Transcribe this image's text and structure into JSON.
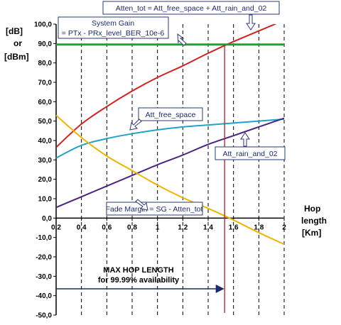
{
  "chart_data": {
    "type": "line",
    "xlabel": [
      "Hop",
      "length",
      "[Km]"
    ],
    "ylabel": [
      "[dB]",
      "or",
      "[dBm]"
    ],
    "xlim": [
      0.2,
      2.0
    ],
    "ylim": [
      -50,
      100
    ],
    "x_ticks": [
      "0,2",
      "0,4",
      "0,6",
      "0,8",
      "1",
      "1,2",
      "1,4",
      "1,6",
      "1,8",
      "2"
    ],
    "x_tick_values": [
      0.2,
      0.4,
      0.6,
      0.8,
      1.0,
      1.2,
      1.4,
      1.6,
      1.8,
      2.0
    ],
    "y_ticks": [
      "-50,0",
      "-40,0",
      "-30,0",
      "-20,0",
      "-10,0",
      "0,0",
      "10,0",
      "20,0",
      "30,0",
      "40,0",
      "50,0",
      "60,0",
      "70,0",
      "80,0",
      "90,0",
      "100,0"
    ],
    "y_tick_values": [
      -50,
      -40,
      -30,
      -20,
      -10,
      0,
      10,
      20,
      30,
      40,
      50,
      60,
      70,
      80,
      90,
      100
    ],
    "grid": {
      "vertical": "dashed",
      "horizontal": "none"
    },
    "x": [
      0.2,
      0.4,
      0.6,
      0.8,
      1.0,
      1.2,
      1.4,
      1.6,
      1.8,
      2.0
    ],
    "series": [
      {
        "name": "Atten_tot = Att_free_space + Att_rain_and_02",
        "color": "#d42020",
        "values": [
          36.5,
          48.5,
          57.5,
          65.5,
          72.5,
          78.5,
          85.0,
          91.0,
          96.5,
          102.0
        ]
      },
      {
        "name": "Att_free_space",
        "color": "#1fa3c9",
        "values": [
          31.0,
          37.5,
          41.0,
          43.5,
          45.5,
          47.0,
          48.0,
          49.0,
          50.0,
          51.0
        ]
      },
      {
        "name": "Att_rain_and_02",
        "color": "#4a2484",
        "values": [
          5.5,
          11.0,
          16.5,
          22.0,
          27.5,
          32.5,
          38.0,
          42.5,
          47.0,
          51.5
        ]
      },
      {
        "name": "Fade Margin = SG - Atten_tot",
        "color": "#f0b400",
        "values": [
          53.0,
          41.5,
          32.0,
          24.5,
          17.0,
          10.5,
          5.0,
          -1.0,
          -7.5,
          -13.5
        ]
      },
      {
        "name": "System Gain = PTx - PRx_level_BER_10e-6",
        "color": "#1aa52a",
        "values": [
          89.5,
          89.5,
          89.5,
          89.5,
          89.5,
          89.5,
          89.5,
          89.5,
          89.5,
          89.5
        ]
      }
    ],
    "max_hop": {
      "x": 1.53,
      "label": [
        "MAX HOP LENGTH",
        "for 99.99% availability"
      ]
    },
    "annotations": {
      "system_gain": [
        "System Gain",
        "= PTx - PRx_level_BER_10e-6"
      ],
      "atten_tot": "Atten_tot = Att_free_space + Att_rain_and_02",
      "att_free_space": "Att_free_space",
      "att_rain": "Att_rain_and_02",
      "fade_margin": "Fade Margin = SG - Atten_tot"
    }
  }
}
